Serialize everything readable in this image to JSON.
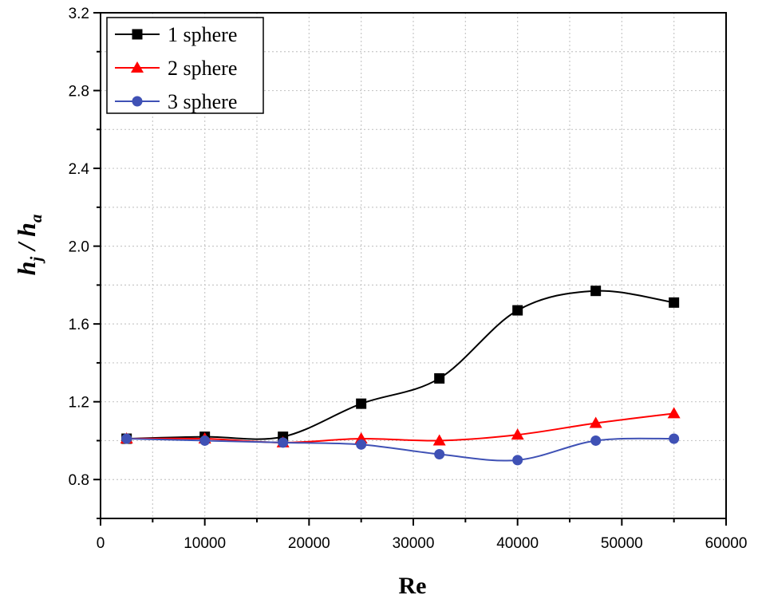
{
  "chart_data": {
    "type": "line",
    "xlabel": "Re",
    "ylabel_parts": {
      "h1": "h",
      "s1": "j",
      "slash": " / ",
      "h2": "h",
      "s2": "a"
    },
    "xlim": [
      0,
      60000
    ],
    "ylim": [
      0.6,
      3.2
    ],
    "xticks": [
      0,
      10000,
      20000,
      30000,
      40000,
      50000,
      60000
    ],
    "xtick_labels": [
      "0",
      "10000",
      "20000",
      "30000",
      "40000",
      "50000",
      "60000"
    ],
    "yticks": [
      0.8,
      1.2,
      1.6,
      2.0,
      2.4,
      2.8,
      3.2
    ],
    "ytick_labels": [
      "0.8",
      "1.2",
      "1.6",
      "2.0",
      "2.4",
      "2.8",
      "3.2"
    ],
    "grid": true,
    "legend_position": "top-left",
    "x": [
      2500,
      10000,
      17500,
      25000,
      32500,
      40000,
      47500,
      55000
    ],
    "series": [
      {
        "name": "1 sphere",
        "marker": "square",
        "color": "#000000",
        "values": [
          1.01,
          1.02,
          1.02,
          1.19,
          1.32,
          1.67,
          1.77,
          1.71
        ]
      },
      {
        "name": "2 sphere",
        "marker": "triangle",
        "color": "#ff0000",
        "values": [
          1.01,
          1.01,
          0.99,
          1.01,
          1.0,
          1.03,
          1.09,
          1.14
        ]
      },
      {
        "name": "3 sphere",
        "marker": "circle",
        "color": "#3f51b5",
        "values": [
          1.01,
          1.0,
          0.99,
          0.98,
          0.93,
          0.9,
          1.0,
          1.01
        ]
      }
    ]
  }
}
